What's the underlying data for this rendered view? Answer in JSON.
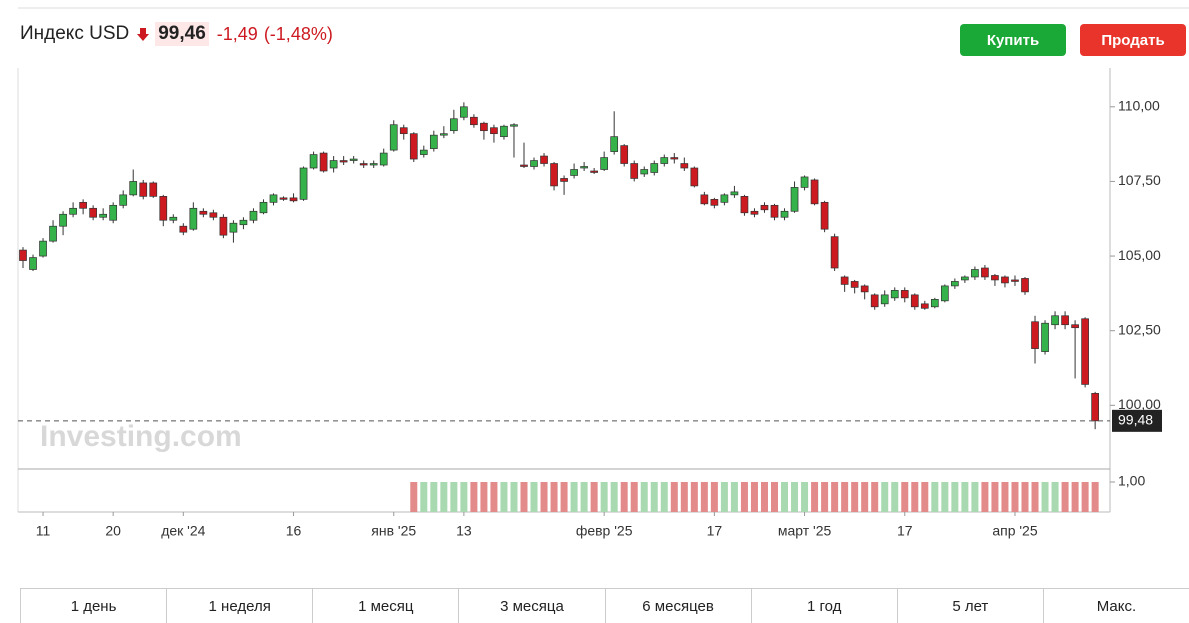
{
  "header": {
    "title": "Индекс USD",
    "price": "99,46",
    "change": "-1,49",
    "change_pct": "(-1,48%)"
  },
  "buttons": {
    "buy": "Купить",
    "sell": "Продать"
  },
  "timeframes": [
    "1 день",
    "1 неделя",
    "1 месяц",
    "3 месяца",
    "6 месяцев",
    "1 год",
    "5 лет",
    "Макс."
  ],
  "chart_data": {
    "type": "candlestick",
    "watermark": "Investing.com",
    "categories": [
      null,
      null,
      "11",
      null,
      null,
      null,
      null,
      null,
      null,
      "20",
      null,
      null,
      null,
      null,
      null,
      null,
      "дек '24",
      null,
      null,
      null,
      null,
      null,
      null,
      null,
      null,
      null,
      null,
      "16",
      null,
      null,
      null,
      null,
      null,
      null,
      null,
      null,
      null,
      "янв '25",
      null,
      null,
      null,
      null,
      null,
      null,
      "13",
      null,
      null,
      null,
      null,
      null,
      null,
      null,
      null,
      null,
      null,
      null,
      null,
      null,
      "февр '25",
      null,
      null,
      null,
      null,
      null,
      null,
      null,
      null,
      null,
      null,
      "17",
      null,
      null,
      null,
      null,
      null,
      null,
      null,
      null,
      "март '25",
      null,
      null,
      null,
      null,
      null,
      null,
      null,
      null,
      null,
      "17",
      null,
      null,
      null,
      null,
      null,
      null,
      null,
      null,
      null,
      null,
      "апр '25",
      null,
      null,
      null,
      null,
      null,
      null,
      null,
      null
    ],
    "open": [
      105.2,
      104.55,
      105.0,
      105.5,
      106.0,
      106.4,
      106.8,
      106.6,
      106.3,
      106.2,
      106.7,
      107.05,
      107.45,
      107.45,
      107.0,
      106.2,
      106.0,
      105.9,
      106.5,
      106.45,
      106.3,
      105.8,
      106.05,
      106.2,
      106.45,
      106.8,
      106.95,
      106.95,
      106.9,
      107.95,
      108.45,
      107.95,
      108.2,
      108.2,
      108.1,
      108.05,
      108.05,
      108.55,
      109.3,
      109.1,
      108.4,
      108.6,
      109.05,
      109.2,
      109.65,
      109.65,
      109.45,
      109.3,
      109.0,
      109.35,
      108.05,
      108.0,
      108.35,
      108.1,
      107.6,
      107.7,
      107.95,
      107.85,
      107.9,
      108.5,
      108.7,
      108.1,
      107.75,
      107.8,
      108.1,
      108.3,
      108.1,
      107.95,
      107.05,
      106.9,
      106.8,
      107.05,
      107.0,
      106.5,
      106.7,
      106.7,
      106.3,
      106.5,
      107.3,
      107.55,
      106.8,
      105.65,
      104.3,
      104.15,
      104.0,
      103.7,
      103.4,
      103.6,
      103.85,
      103.7,
      103.4,
      103.3,
      103.5,
      104.0,
      104.2,
      104.3,
      104.6,
      104.35,
      104.3,
      104.2,
      104.25,
      102.8,
      101.8,
      102.7,
      103.0,
      102.7,
      102.9,
      100.4
    ],
    "high": [
      105.3,
      105.05,
      105.6,
      106.2,
      106.5,
      106.8,
      106.9,
      106.7,
      106.6,
      106.8,
      107.2,
      107.9,
      107.55,
      107.5,
      107.05,
      106.4,
      106.1,
      106.8,
      106.6,
      106.55,
      106.4,
      106.2,
      106.3,
      106.6,
      106.9,
      107.1,
      107.0,
      107.1,
      108.0,
      108.5,
      108.5,
      108.35,
      108.35,
      108.35,
      108.2,
      108.2,
      108.6,
      109.55,
      109.4,
      109.15,
      108.7,
      109.2,
      109.35,
      109.9,
      110.15,
      109.75,
      109.5,
      109.4,
      109.4,
      109.45,
      108.8,
      108.3,
      108.45,
      108.15,
      107.7,
      108.1,
      108.15,
      107.95,
      108.5,
      109.85,
      108.75,
      108.2,
      108.0,
      108.2,
      108.4,
      108.45,
      108.3,
      108.0,
      107.15,
      106.95,
      107.1,
      107.35,
      107.05,
      106.6,
      106.8,
      106.75,
      106.6,
      107.5,
      107.7,
      107.6,
      106.85,
      105.75,
      104.35,
      104.2,
      104.05,
      103.75,
      103.85,
      103.95,
      103.95,
      103.75,
      103.5,
      103.6,
      104.05,
      104.25,
      104.35,
      104.65,
      104.7,
      104.4,
      104.35,
      104.35,
      104.3,
      103.0,
      102.85,
      103.15,
      103.15,
      102.85,
      102.95,
      100.45
    ],
    "low": [
      104.6,
      104.5,
      104.95,
      105.45,
      105.7,
      106.3,
      106.4,
      106.2,
      106.2,
      106.1,
      106.6,
      107.0,
      106.9,
      106.95,
      106.0,
      106.1,
      105.7,
      105.85,
      106.3,
      106.2,
      105.6,
      105.45,
      105.9,
      106.1,
      106.4,
      106.7,
      106.85,
      106.8,
      106.85,
      107.9,
      107.8,
      107.8,
      108.05,
      108.1,
      107.95,
      107.95,
      108.0,
      108.5,
      108.9,
      108.15,
      108.3,
      108.5,
      108.95,
      109.1,
      109.55,
      109.3,
      108.9,
      108.8,
      108.9,
      108.3,
      107.95,
      107.9,
      108.0,
      107.2,
      107.05,
      107.6,
      107.85,
      107.75,
      107.85,
      108.4,
      108.0,
      107.5,
      107.65,
      107.7,
      108.0,
      108.1,
      107.85,
      107.3,
      106.7,
      106.6,
      106.7,
      106.95,
      106.35,
      106.3,
      106.45,
      106.2,
      106.2,
      106.45,
      107.2,
      106.7,
      105.8,
      104.5,
      103.8,
      103.75,
      103.55,
      103.2,
      103.3,
      103.5,
      103.45,
      103.2,
      103.2,
      103.25,
      103.45,
      103.9,
      104.1,
      104.2,
      104.2,
      104.0,
      103.95,
      104.0,
      103.7,
      101.4,
      101.7,
      102.55,
      102.55,
      100.9,
      100.6,
      99.2
    ],
    "close": [
      104.85,
      104.95,
      105.5,
      106.0,
      106.4,
      106.6,
      106.6,
      106.3,
      106.4,
      106.7,
      107.05,
      107.5,
      107.0,
      107.0,
      106.2,
      106.3,
      105.8,
      106.6,
      106.4,
      106.3,
      105.7,
      106.1,
      106.2,
      106.5,
      106.8,
      107.05,
      106.9,
      106.85,
      107.95,
      108.4,
      107.85,
      108.2,
      108.15,
      108.25,
      108.05,
      108.1,
      108.45,
      109.4,
      109.1,
      108.25,
      108.55,
      109.05,
      109.1,
      109.6,
      110.0,
      109.4,
      109.2,
      109.1,
      109.35,
      109.4,
      108.0,
      108.2,
      108.1,
      107.35,
      107.5,
      107.9,
      108.0,
      107.8,
      108.3,
      109.0,
      108.1,
      107.6,
      107.9,
      108.1,
      108.3,
      108.25,
      107.95,
      107.35,
      106.75,
      106.7,
      107.05,
      107.15,
      106.45,
      106.4,
      106.55,
      106.3,
      106.5,
      107.3,
      107.65,
      106.75,
      105.9,
      104.6,
      104.05,
      103.95,
      103.8,
      103.3,
      103.7,
      103.85,
      103.6,
      103.3,
      103.25,
      103.55,
      104.0,
      104.15,
      104.3,
      104.55,
      104.3,
      104.2,
      104.1,
      104.15,
      103.8,
      101.9,
      102.75,
      103.0,
      102.7,
      102.6,
      100.7,
      99.48
    ],
    "volume": [
      null,
      null,
      null,
      null,
      null,
      null,
      null,
      null,
      null,
      null,
      null,
      null,
      null,
      null,
      null,
      null,
      null,
      null,
      null,
      null,
      null,
      null,
      null,
      null,
      null,
      null,
      null,
      null,
      null,
      null,
      null,
      null,
      null,
      null,
      null,
      null,
      null,
      null,
      null,
      1,
      1,
      1,
      1,
      1,
      1,
      1,
      1,
      1,
      1,
      1,
      1,
      1,
      1,
      1,
      1,
      1,
      1,
      1,
      1,
      1,
      1,
      1,
      1,
      1,
      1,
      1,
      1,
      1,
      1,
      1,
      1,
      1,
      1,
      1,
      1,
      1,
      1,
      1,
      1,
      1,
      1,
      1,
      1,
      1,
      1,
      1,
      1,
      1,
      1,
      1,
      1,
      1,
      1,
      1,
      1,
      1,
      1,
      1,
      1,
      1,
      1,
      1,
      1,
      1,
      1,
      1,
      1,
      1
    ],
    "ylim": [
      97.9,
      111.3
    ],
    "yticks": [
      {
        "value": 100,
        "label": "100,00"
      },
      {
        "value": 102.5,
        "label": "102,50"
      },
      {
        "value": 105,
        "label": "105,00"
      },
      {
        "value": 107.5,
        "label": "107,50"
      },
      {
        "value": 110,
        "label": "110,00"
      }
    ],
    "volume_lim": [
      0,
      1.4
    ],
    "volume_ticks": [
      {
        "value": 1,
        "label": "1,00"
      }
    ],
    "last_price": {
      "value": 99.48,
      "label": "99,48"
    },
    "up_color": "#35b249",
    "down_color": "#cc1a20",
    "volume_up_color": "#a8d9b0",
    "volume_down_color": "#e38a8a"
  }
}
